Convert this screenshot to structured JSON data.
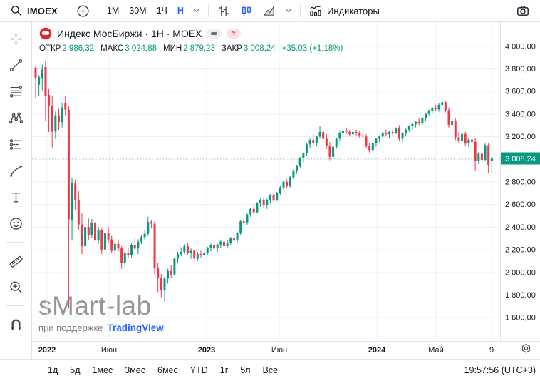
{
  "toolbar": {
    "symbol": "IMOEX",
    "timeframes": [
      "1М",
      "30М",
      "1Ч",
      "Н"
    ],
    "active_timeframe": "Н",
    "chart_styles": [
      "bars",
      "candles",
      "area"
    ],
    "active_style": "candles",
    "indicators_label": "Индикаторы"
  },
  "sidebar": {
    "tools": [
      "crosshair",
      "trend-line",
      "fib-retracement",
      "xabcd-pattern",
      "long-position",
      "brush",
      "text",
      "emoji",
      "ruler",
      "zoom-in",
      "magnet"
    ]
  },
  "legend": {
    "title": "Индекс МосБиржи · 1Н · MOEX",
    "ohlc": [
      {
        "label": "ОТКР",
        "value": "2 986,32"
      },
      {
        "label": "МАКС",
        "value": "3 024,88"
      },
      {
        "label": "МИН",
        "value": "2 879,23"
      },
      {
        "label": "ЗАКР",
        "value": "3 008,24"
      }
    ],
    "change": "+35,03 (+1,18%)"
  },
  "watermark": {
    "brand": "sMart-lab",
    "powered_by": "при поддержке",
    "powered_link": "TradingView"
  },
  "price_axis": {
    "last_price_label": "3 008,24",
    "labels": [
      {
        "text": "4 000,00",
        "value": 4000
      },
      {
        "text": "3 800,00",
        "value": 3800
      },
      {
        "text": "3 600,00",
        "value": 3600
      },
      {
        "text": "3 400,00",
        "value": 3400
      },
      {
        "text": "3 200,00",
        "value": 3200
      },
      {
        "text": "2 800,00",
        "value": 2800
      },
      {
        "text": "2 600,00",
        "value": 2600
      },
      {
        "text": "2 400,00",
        "value": 2400
      },
      {
        "text": "2 200,00",
        "value": 2200
      },
      {
        "text": "2 000,00",
        "value": 2000
      },
      {
        "text": "1 800,00",
        "value": 1800
      },
      {
        "text": "1 600,00",
        "value": 1600
      }
    ]
  },
  "time_axis": {
    "labels": [
      {
        "text": "2022",
        "bold": true
      },
      {
        "text": "Июн",
        "bold": false
      },
      {
        "text": "2023",
        "bold": true
      },
      {
        "text": "Июн",
        "bold": false
      },
      {
        "text": "2024",
        "bold": true
      },
      {
        "text": "Май",
        "bold": false
      },
      {
        "text": "9",
        "bold": false
      }
    ]
  },
  "bottom_bar": {
    "ranges": [
      "1д",
      "5д",
      "1мес",
      "3мес",
      "6мес",
      "YTD",
      "1г",
      "5л",
      "Все"
    ],
    "clock": "19:57:56 (UTC+3)"
  },
  "colors": {
    "up": "#089981",
    "down": "#f23645",
    "accent": "#2962ff",
    "text": "#131722",
    "muted": "#787b86",
    "border": "#e0e3eb",
    "grid": "#edeff3",
    "logo_red": "#e0282e"
  },
  "chart_data": {
    "type": "candlestick",
    "title": "Индекс МосБиржи",
    "timeframe": "1Н",
    "legend_position": "top-left",
    "grid": true,
    "last_candle": {
      "open": 2986.32,
      "high": 3024.88,
      "low": 2879.23,
      "close": 3008.24,
      "change": 35.03,
      "change_pct": 1.18
    },
    "last_price": 3008.24,
    "y_axis": {
      "min": 1500,
      "max": 4050,
      "tick_step": 200,
      "gridlines": [
        1600,
        1800,
        2000,
        2200,
        2400,
        2600,
        2800,
        3000,
        3200,
        3400,
        3600,
        3800,
        4000
      ]
    },
    "x_axis": {
      "labels": [
        "2022",
        "Июн",
        "2023",
        "Июн",
        "2024",
        "Май",
        "9"
      ]
    },
    "candles": [
      [
        3810,
        3826,
        3538,
        3714
      ],
      [
        3660,
        3746,
        3556,
        3728
      ],
      [
        3712,
        3838,
        3610,
        3794
      ],
      [
        3816,
        3866,
        3343,
        3557
      ],
      [
        3570,
        3622,
        3242,
        3476
      ],
      [
        3476,
        3560,
        3105,
        3246
      ],
      [
        3246,
        3422,
        3180,
        3390
      ],
      [
        3390,
        3446,
        3260,
        3330
      ],
      [
        3330,
        3502,
        3282,
        3458
      ],
      [
        3500,
        3560,
        3380,
        3440
      ],
      [
        3440,
        3470,
        1681,
        2470
      ],
      [
        2460,
        2832,
        2280,
        2790
      ],
      [
        2790,
        2822,
        2552,
        2640
      ],
      [
        2640,
        2722,
        2372,
        2424
      ],
      [
        2424,
        2522,
        2162,
        2232
      ],
      [
        2232,
        2462,
        2192,
        2402
      ],
      [
        2402,
        2482,
        2282,
        2332
      ],
      [
        2332,
        2472,
        2302,
        2442
      ],
      [
        2442,
        2452,
        2242,
        2282
      ],
      [
        2282,
        2402,
        2252,
        2372
      ],
      [
        2372,
        2392,
        2162,
        2202
      ],
      [
        2202,
        2382,
        2152,
        2352
      ],
      [
        2352,
        2402,
        2262,
        2292
      ],
      [
        2292,
        2322,
        2172,
        2192
      ],
      [
        2192,
        2282,
        2152,
        2252
      ],
      [
        2252,
        2292,
        2182,
        2212
      ],
      [
        2212,
        2232,
        2032,
        2082
      ],
      [
        2082,
        2192,
        2042,
        2172
      ],
      [
        2172,
        2222,
        2122,
        2152
      ],
      [
        2152,
        2262,
        2132,
        2242
      ],
      [
        2242,
        2302,
        2192,
        2212
      ],
      [
        2212,
        2292,
        2162,
        2272
      ],
      [
        2272,
        2332,
        2252,
        2312
      ],
      [
        2312,
        2372,
        2282,
        2342
      ],
      [
        2342,
        2492,
        2322,
        2446
      ],
      [
        2446,
        2466,
        2392,
        2432
      ],
      [
        2432,
        2452,
        1982,
        2036
      ],
      [
        2036,
        2082,
        1826,
        1952
      ],
      [
        1952,
        1986,
        1782,
        1842
      ],
      [
        1842,
        1962,
        1746,
        1946
      ],
      [
        1946,
        2032,
        1902,
        2012
      ],
      [
        2012,
        2062,
        1952,
        1982
      ],
      [
        1982,
        2132,
        1972,
        2122
      ],
      [
        2122,
        2182,
        2082,
        2162
      ],
      [
        2162,
        2222,
        2142,
        2182
      ],
      [
        2182,
        2252,
        2162,
        2232
      ],
      [
        2232,
        2262,
        2152,
        2172
      ],
      [
        2172,
        2212,
        2122,
        2192
      ],
      [
        2192,
        2202,
        2092,
        2122
      ],
      [
        2122,
        2182,
        2102,
        2162
      ],
      [
        2162,
        2192,
        2132,
        2152
      ],
      [
        2152,
        2192,
        2122,
        2176
      ],
      [
        2176,
        2226,
        2156,
        2216
      ],
      [
        2216,
        2256,
        2186,
        2242
      ],
      [
        2242,
        2262,
        2192,
        2212
      ],
      [
        2212,
        2252,
        2182,
        2246
      ],
      [
        2246,
        2286,
        2216,
        2272
      ],
      [
        2272,
        2292,
        2212,
        2232
      ],
      [
        2232,
        2282,
        2212,
        2262
      ],
      [
        2262,
        2312,
        2242,
        2302
      ],
      [
        2302,
        2342,
        2272,
        2282
      ],
      [
        2282,
        2362,
        2262,
        2352
      ],
      [
        2352,
        2462,
        2332,
        2452
      ],
      [
        2452,
        2482,
        2412,
        2442
      ],
      [
        2442,
        2522,
        2422,
        2512
      ],
      [
        2512,
        2572,
        2492,
        2562
      ],
      [
        2562,
        2602,
        2512,
        2532
      ],
      [
        2532,
        2622,
        2522,
        2612
      ],
      [
        2612,
        2652,
        2582,
        2642
      ],
      [
        2642,
        2662,
        2572,
        2592
      ],
      [
        2592,
        2652,
        2562,
        2642
      ],
      [
        2642,
        2692,
        2612,
        2682
      ],
      [
        2682,
        2702,
        2622,
        2642
      ],
      [
        2642,
        2712,
        2632,
        2702
      ],
      [
        2702,
        2762,
        2682,
        2752
      ],
      [
        2752,
        2812,
        2732,
        2802
      ],
      [
        2802,
        2822,
        2742,
        2762
      ],
      [
        2762,
        2852,
        2752,
        2842
      ],
      [
        2842,
        2912,
        2822,
        2902
      ],
      [
        2902,
        2952,
        2872,
        2942
      ],
      [
        2942,
        3022,
        2922,
        3012
      ],
      [
        3012,
        3062,
        2972,
        3052
      ],
      [
        3052,
        3142,
        3032,
        3132
      ],
      [
        3132,
        3192,
        3102,
        3172
      ],
      [
        3172,
        3226,
        3112,
        3142
      ],
      [
        3142,
        3212,
        3122,
        3202
      ],
      [
        3202,
        3292,
        3182,
        3242
      ],
      [
        3242,
        3262,
        3152,
        3182
      ],
      [
        3182,
        3222,
        3092,
        3122
      ],
      [
        3122,
        3152,
        2992,
        3022
      ],
      [
        3022,
        3122,
        3002,
        3112
      ],
      [
        3112,
        3192,
        3092,
        3182
      ],
      [
        3182,
        3252,
        3162,
        3232
      ],
      [
        3232,
        3272,
        3202,
        3252
      ],
      [
        3252,
        3282,
        3222,
        3242
      ],
      [
        3242,
        3262,
        3202,
        3222
      ],
      [
        3222,
        3252,
        3192,
        3242
      ],
      [
        3242,
        3262,
        3212,
        3232
      ],
      [
        3232,
        3252,
        3192,
        3212
      ],
      [
        3212,
        3242,
        3182,
        3202
      ],
      [
        3202,
        3222,
        3102,
        3122
      ],
      [
        3122,
        3142,
        3062,
        3082
      ],
      [
        3082,
        3152,
        3062,
        3142
      ],
      [
        3142,
        3192,
        3122,
        3182
      ],
      [
        3182,
        3212,
        3152,
        3202
      ],
      [
        3202,
        3242,
        3182,
        3232
      ],
      [
        3232,
        3262,
        3202,
        3222
      ],
      [
        3222,
        3252,
        3192,
        3242
      ],
      [
        3242,
        3262,
        3212,
        3232
      ],
      [
        3232,
        3282,
        3222,
        3272
      ],
      [
        3272,
        3302,
        3162,
        3182
      ],
      [
        3182,
        3242,
        3152,
        3232
      ],
      [
        3232,
        3272,
        3202,
        3262
      ],
      [
        3262,
        3302,
        3242,
        3292
      ],
      [
        3292,
        3322,
        3262,
        3312
      ],
      [
        3312,
        3342,
        3282,
        3332
      ],
      [
        3332,
        3362,
        3302,
        3322
      ],
      [
        3322,
        3372,
        3302,
        3362
      ],
      [
        3362,
        3412,
        3342,
        3402
      ],
      [
        3402,
        3442,
        3382,
        3432
      ],
      [
        3432,
        3462,
        3412,
        3452
      ],
      [
        3452,
        3482,
        3432,
        3442
      ],
      [
        3442,
        3500,
        3422,
        3482
      ],
      [
        3482,
        3521,
        3452,
        3505
      ],
      [
        3505,
        3520,
        3415,
        3435
      ],
      [
        3435,
        3460,
        3280,
        3305
      ],
      [
        3305,
        3355,
        3270,
        3340
      ],
      [
        3340,
        3360,
        3170,
        3195
      ],
      [
        3195,
        3240,
        3140,
        3160
      ],
      [
        3160,
        3235,
        3145,
        3225
      ],
      [
        3225,
        3245,
        3115,
        3140
      ],
      [
        3140,
        3195,
        3110,
        3175
      ],
      [
        3175,
        3215,
        3135,
        3155
      ],
      [
        3155,
        3190,
        2895,
        2985
      ],
      [
        2985,
        3065,
        2960,
        3050
      ],
      [
        3050,
        3070,
        2975,
        2995
      ],
      [
        2995,
        3140,
        2985,
        3125
      ],
      [
        3125,
        3140,
        2882,
        2951
      ],
      [
        2986.32,
        3024.88,
        2879.23,
        3008.24
      ]
    ]
  }
}
